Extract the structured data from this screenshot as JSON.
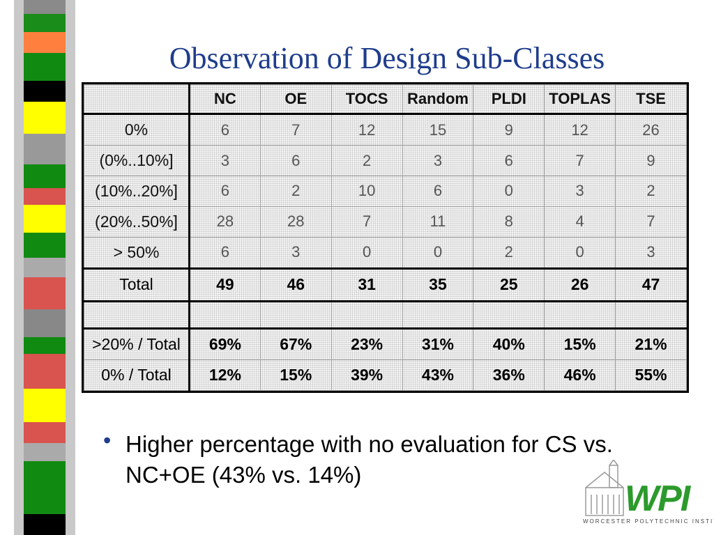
{
  "slide": {
    "title": "Observation of Design Sub-Classes",
    "bullet": "Higher percentage with no evaluation for CS vs. NC+OE (43% vs. 14%)"
  },
  "table": {
    "columns": [
      "NC",
      "OE",
      "TOCS",
      "Random",
      "PLDI",
      "TOPLAS",
      "TSE"
    ],
    "rows": [
      {
        "label": "0%",
        "values": [
          "6",
          "7",
          "12",
          "15",
          "9",
          "12",
          "26"
        ]
      },
      {
        "label": "(0%..10%]",
        "values": [
          "3",
          "6",
          "2",
          "3",
          "6",
          "7",
          "9"
        ]
      },
      {
        "label": "(10%..20%]",
        "values": [
          "6",
          "2",
          "10",
          "6",
          "0",
          "3",
          "2"
        ]
      },
      {
        "label": "(20%..50%]",
        "values": [
          "28",
          "28",
          "7",
          "11",
          "8",
          "4",
          "7"
        ]
      },
      {
        "label": "> 50%",
        "values": [
          "6",
          "3",
          "0",
          "0",
          "2",
          "0",
          "3"
        ]
      }
    ],
    "total": {
      "label": "Total",
      "values": [
        "49",
        "46",
        "31",
        "35",
        "25",
        "26",
        "47"
      ]
    },
    "ratios": [
      {
        "label": ">20% / Total",
        "values": [
          "69%",
          "67%",
          "23%",
          "31%",
          "40%",
          "15%",
          "21%"
        ]
      },
      {
        "label": "0% / Total",
        "values": [
          "12%",
          "15%",
          "39%",
          "43%",
          "36%",
          "46%",
          "55%"
        ]
      }
    ]
  },
  "logo": {
    "text": "WPI",
    "subtitle": "WORCESTER POLYTECHNIC INSTITUTE",
    "icon": "wpi-building-logo-icon"
  },
  "decoration": {
    "stripe_colors": [
      "#008000",
      "#ff7f3f",
      "#000000",
      "#ffff00",
      "#d9534f",
      "#808080"
    ]
  }
}
